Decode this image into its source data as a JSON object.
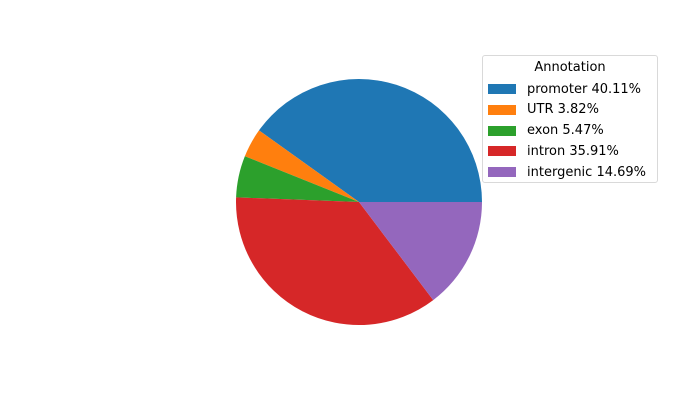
{
  "chart_data": {
    "type": "pie",
    "legend_title": "Annotation",
    "legend_placement": "upper-right",
    "start_angle_deg": 0,
    "direction": "counterclockwise",
    "slices": [
      {
        "name": "promoter",
        "value": 40.11,
        "label": "promoter 40.11%",
        "color": "#1f77b4"
      },
      {
        "name": "UTR",
        "value": 3.82,
        "label": "UTR 3.82%",
        "color": "#ff7f0e"
      },
      {
        "name": "exon",
        "value": 5.47,
        "label": "exon 5.47%",
        "color": "#2ca02c"
      },
      {
        "name": "intron",
        "value": 35.91,
        "label": "intron 35.91%",
        "color": "#d62728"
      },
      {
        "name": "intergenic",
        "value": 14.69,
        "label": "intergenic 14.69%",
        "color": "#9467bd"
      }
    ]
  }
}
